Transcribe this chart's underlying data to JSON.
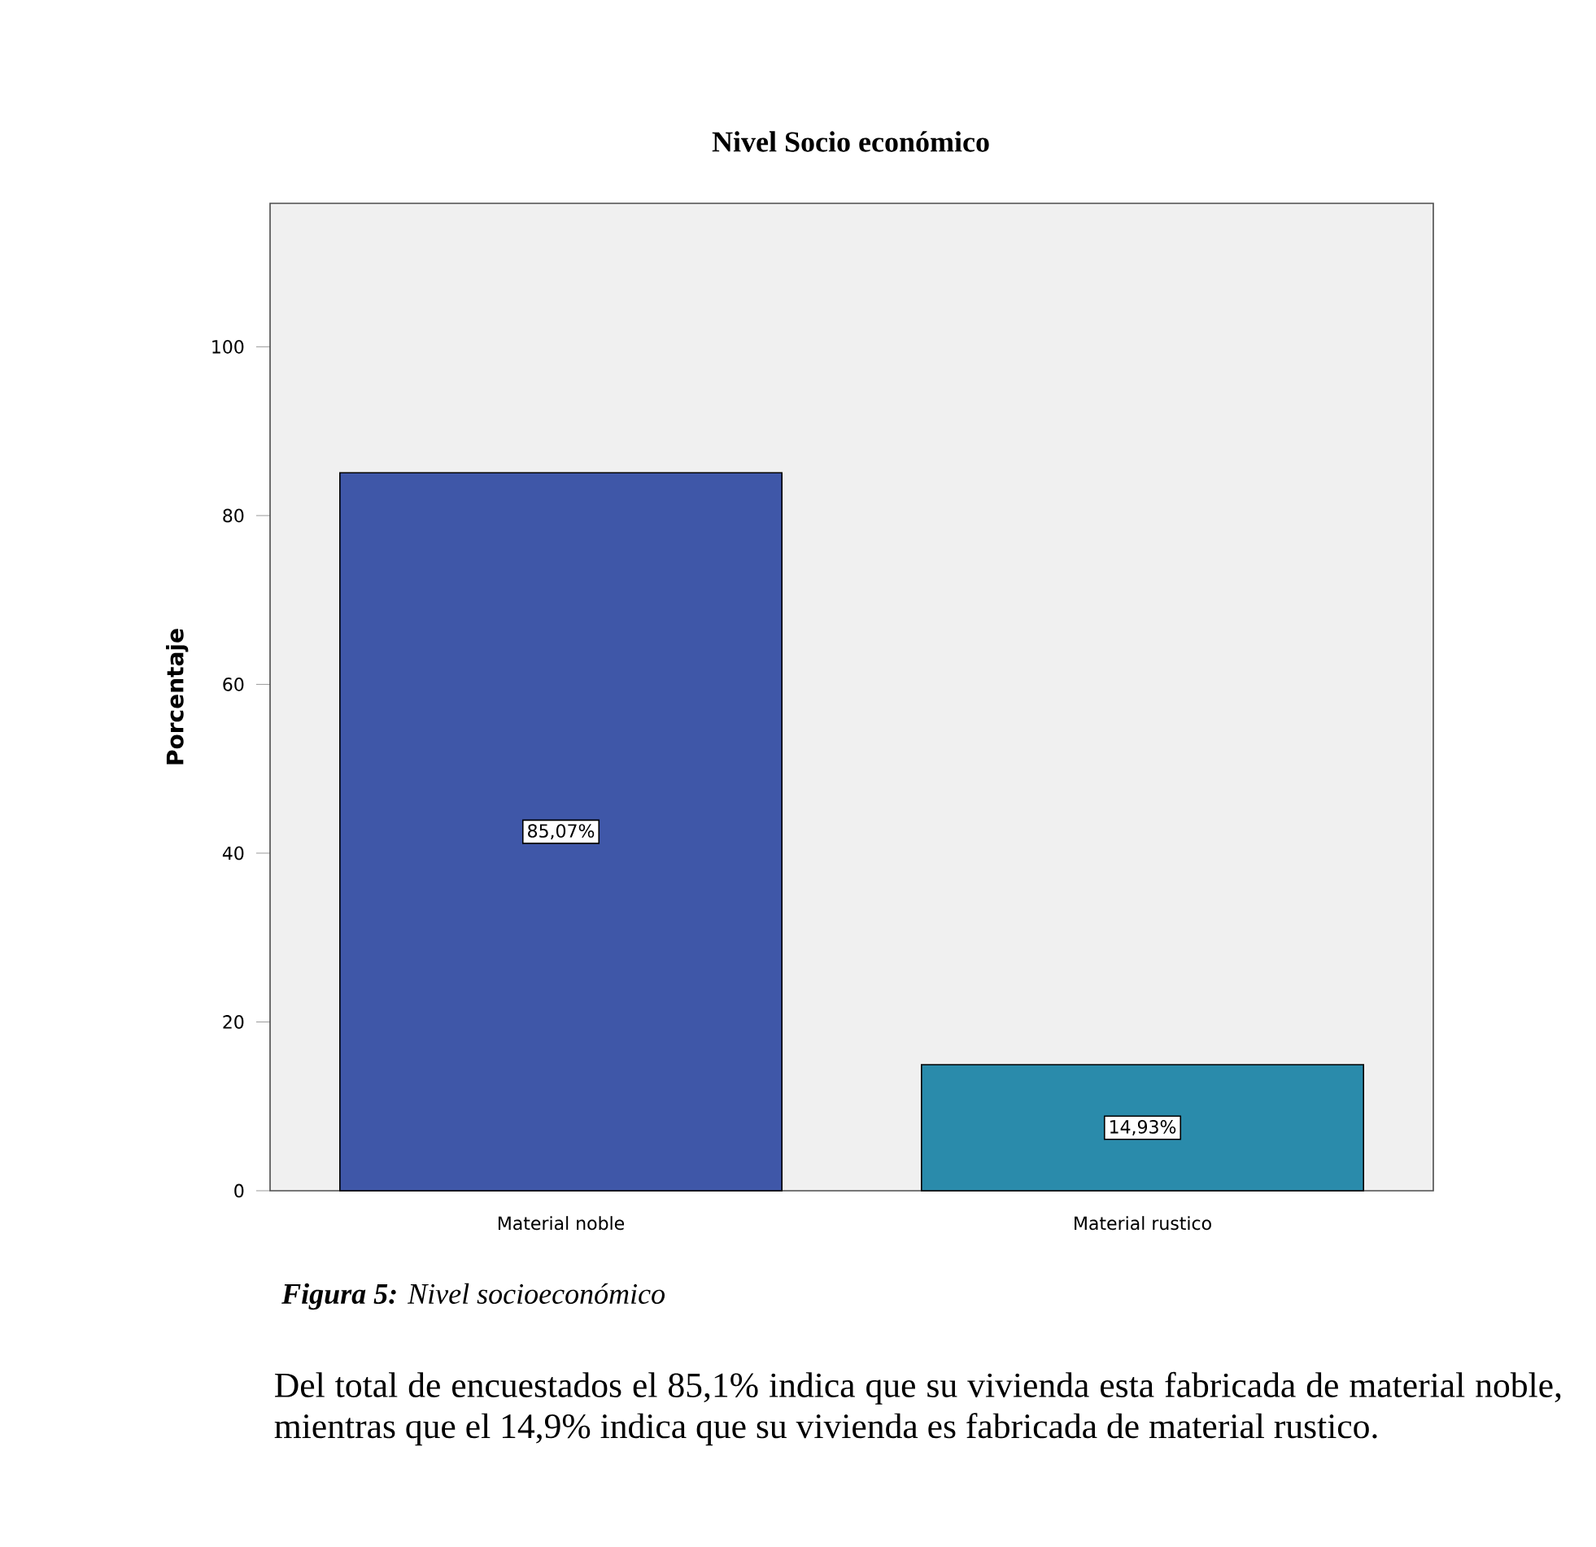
{
  "chart_data": {
    "type": "bar",
    "title": "Nivel Socio económico",
    "ylabel": "Porcentaje",
    "categories": [
      "Material noble",
      "Material rustico"
    ],
    "values": [
      85.07,
      14.93
    ],
    "colors": [
      "#3f57a8",
      "#2a8bab"
    ],
    "value_labels": [
      "85,07%",
      "14,93%"
    ],
    "ylim": [
      0,
      117
    ],
    "yticks": [
      0,
      20,
      40,
      60,
      80,
      100
    ],
    "annotations": [
      "**Figura 5:** Nivel socioeconómico",
      "Del total de encuestados el 85,1% indica que su vivienda esta fabricada de material noble, mientras que el 14,9% indica que su vivienda es fabricada de material rustico."
    ]
  }
}
